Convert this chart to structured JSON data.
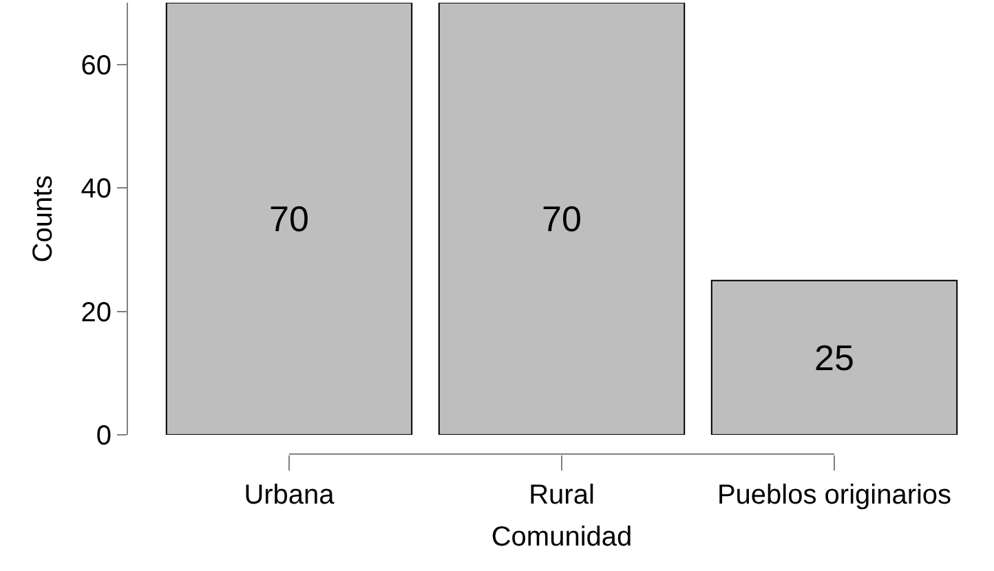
{
  "chart_data": {
    "type": "bar",
    "xlabel": "Comunidad",
    "ylabel": "Counts",
    "categories": [
      "Urbana",
      "Rural",
      "Pueblos originarios"
    ],
    "values": [
      70,
      70,
      25
    ],
    "color": "#bebebe",
    "ylim": [
      0,
      70
    ],
    "yticks": [
      0,
      20,
      40,
      60
    ],
    "data_labels": true
  }
}
